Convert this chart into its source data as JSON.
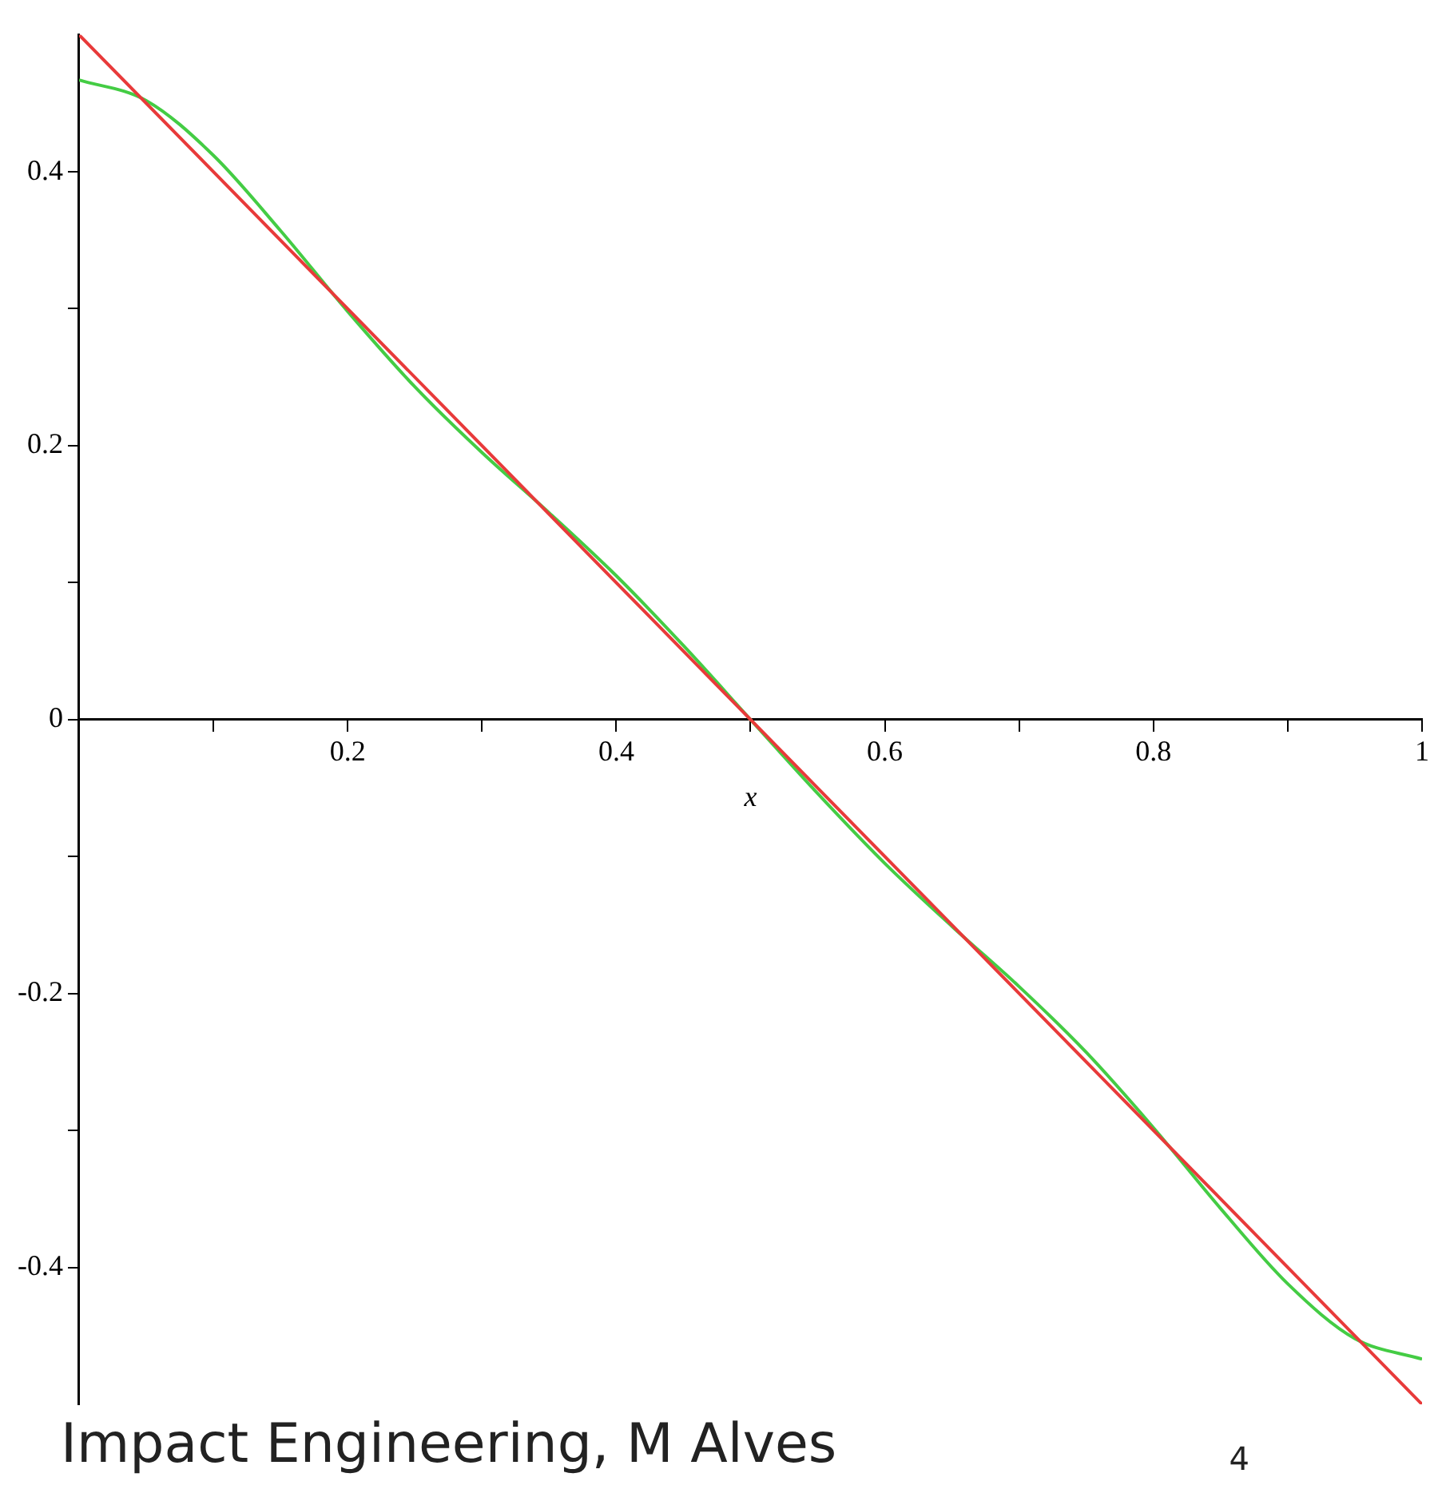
{
  "chart_data": {
    "type": "line",
    "xlabel": "x",
    "xlim": [
      0,
      1
    ],
    "ylim": [
      -0.5,
      0.5
    ],
    "xticks": [
      {
        "value": 0.1,
        "label": null
      },
      0.2,
      {
        "value": 0.3,
        "label": null
      },
      0.4,
      {
        "value": 0.5,
        "label": null
      },
      0.6,
      {
        "value": 0.7,
        "label": null
      },
      0.8,
      {
        "value": 0.9,
        "label": null
      },
      1
    ],
    "yticks": [
      -0.4,
      {
        "value": -0.3,
        "label": null
      },
      -0.2,
      {
        "value": -0.1,
        "label": null
      },
      0,
      {
        "value": 0.1,
        "label": null
      },
      0.2,
      {
        "value": 0.3,
        "label": null
      },
      0.4
    ],
    "grid": false,
    "legend": false,
    "marker": "none",
    "line_style": "solid",
    "series": [
      {
        "color": "#e83a3a",
        "x": [
          0,
          1
        ],
        "values": [
          0.5,
          -0.5
        ]
      },
      {
        "color": "#44cc44",
        "x": [
          0,
          0.05,
          0.1,
          0.15,
          0.2,
          0.25,
          0.3,
          0.35,
          0.4,
          0.45,
          0.5,
          0.55,
          0.6,
          0.65,
          0.7,
          0.75,
          0.8,
          0.85,
          0.9,
          0.95,
          1
        ],
        "values": [
          0.467,
          0.452,
          0.412,
          0.357,
          0.298,
          0.243,
          0.195,
          0.151,
          0.105,
          0.054,
          0,
          -0.054,
          -0.105,
          -0.151,
          -0.195,
          -0.243,
          -0.298,
          -0.357,
          -0.412,
          -0.452,
          -0.467
        ]
      }
    ],
    "annotations": [
      "Impact Engineering, M Alves",
      "4"
    ]
  }
}
